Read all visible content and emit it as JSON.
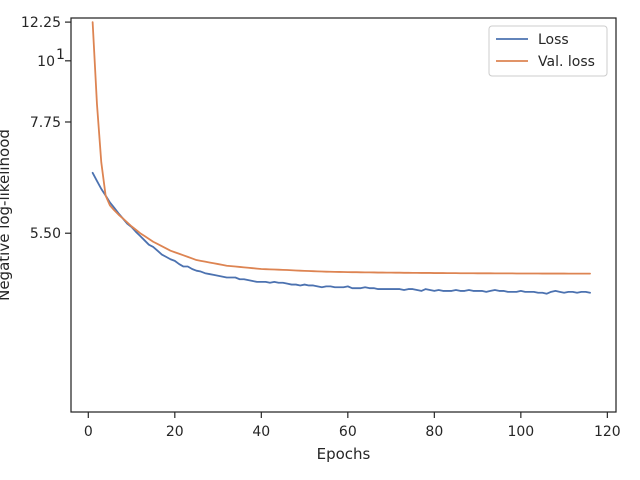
{
  "chart_data": {
    "type": "line",
    "xlabel": "Epochs",
    "ylabel": "Negative log-likelihood",
    "xlim": [
      -4,
      122
    ],
    "ylim": [
      3.75,
      12.55
    ],
    "yscale": "reciprocal",
    "x_ticks": [
      0,
      20,
      40,
      60,
      80,
      100,
      120
    ],
    "y_ticks": [
      5.5,
      7.75,
      10,
      12.25
    ],
    "y_tick_labels": [
      "5.50",
      "7.75",
      "10",
      "12.25"
    ],
    "y_tick_label_superscripts": [
      "",
      "",
      "1",
      ""
    ],
    "grid": false,
    "legend_position": "top-right",
    "legend": [
      "Loss",
      "Val. loss"
    ],
    "series": [
      {
        "name": "Loss",
        "color": "#4c72b0",
        "x": [
          1,
          2,
          3,
          4,
          5,
          6,
          7,
          8,
          9,
          10,
          11,
          12,
          13,
          14,
          15,
          16,
          17,
          18,
          19,
          20,
          21,
          22,
          23,
          24,
          25,
          26,
          27,
          28,
          29,
          30,
          31,
          32,
          33,
          34,
          35,
          36,
          37,
          38,
          39,
          40,
          41,
          42,
          43,
          44,
          45,
          46,
          47,
          48,
          49,
          50,
          51,
          52,
          53,
          54,
          55,
          56,
          57,
          58,
          59,
          60,
          61,
          62,
          63,
          64,
          65,
          66,
          67,
          68,
          69,
          70,
          71,
          72,
          73,
          74,
          75,
          76,
          77,
          78,
          79,
          80,
          81,
          82,
          83,
          84,
          85,
          86,
          87,
          88,
          89,
          90,
          91,
          92,
          93,
          94,
          95,
          96,
          97,
          98,
          99,
          100,
          101,
          102,
          103,
          104,
          105,
          106,
          107,
          108,
          109,
          110,
          111,
          112,
          113,
          114,
          115,
          116
        ],
        "y": [
          6.53,
          6.37,
          6.22,
          6.1,
          5.98,
          5.89,
          5.8,
          5.72,
          5.64,
          5.59,
          5.52,
          5.46,
          5.4,
          5.34,
          5.31,
          5.26,
          5.21,
          5.18,
          5.15,
          5.13,
          5.09,
          5.06,
          5.06,
          5.03,
          5.01,
          5.0,
          4.98,
          4.97,
          4.96,
          4.95,
          4.94,
          4.93,
          4.93,
          4.93,
          4.91,
          4.91,
          4.9,
          4.89,
          4.88,
          4.88,
          4.88,
          4.87,
          4.88,
          4.87,
          4.87,
          4.86,
          4.85,
          4.85,
          4.84,
          4.85,
          4.84,
          4.84,
          4.83,
          4.82,
          4.83,
          4.83,
          4.82,
          4.82,
          4.82,
          4.83,
          4.81,
          4.81,
          4.81,
          4.82,
          4.81,
          4.81,
          4.8,
          4.8,
          4.8,
          4.8,
          4.8,
          4.8,
          4.79,
          4.8,
          4.8,
          4.79,
          4.78,
          4.8,
          4.79,
          4.78,
          4.79,
          4.78,
          4.78,
          4.78,
          4.79,
          4.78,
          4.78,
          4.79,
          4.78,
          4.78,
          4.78,
          4.77,
          4.78,
          4.79,
          4.78,
          4.78,
          4.77,
          4.77,
          4.77,
          4.78,
          4.77,
          4.77,
          4.77,
          4.76,
          4.76,
          4.75,
          4.77,
          4.78,
          4.77,
          4.76,
          4.77,
          4.77,
          4.76,
          4.77,
          4.77,
          4.76
        ]
      },
      {
        "name": "Val. loss",
        "color": "#dd8452",
        "x": [
          1,
          2,
          3,
          4,
          5,
          6,
          7,
          8,
          9,
          10,
          11,
          12,
          13,
          14,
          15,
          16,
          17,
          18,
          19,
          20,
          21,
          22,
          23,
          24,
          25,
          26,
          27,
          28,
          29,
          30,
          31,
          32,
          33,
          34,
          35,
          36,
          37,
          38,
          39,
          40,
          41,
          42,
          43,
          44,
          45,
          46,
          47,
          48,
          49,
          50,
          51,
          52,
          53,
          54,
          55,
          56,
          57,
          58,
          59,
          60,
          61,
          62,
          63,
          64,
          65,
          66,
          67,
          68,
          69,
          70,
          71,
          72,
          73,
          74,
          75,
          76,
          77,
          78,
          79,
          80,
          81,
          82,
          83,
          84,
          85,
          86,
          87,
          88,
          89,
          90,
          91,
          92,
          93,
          94,
          95,
          96,
          97,
          98,
          99,
          100,
          101,
          102,
          103,
          104,
          105,
          106,
          107,
          108,
          109,
          110,
          111,
          112,
          113,
          114,
          115,
          116
        ],
        "y": [
          12.25,
          8.3,
          6.75,
          6.1,
          5.93,
          5.85,
          5.78,
          5.72,
          5.66,
          5.6,
          5.55,
          5.5,
          5.46,
          5.42,
          5.38,
          5.35,
          5.32,
          5.29,
          5.26,
          5.24,
          5.22,
          5.2,
          5.18,
          5.16,
          5.14,
          5.13,
          5.12,
          5.11,
          5.1,
          5.09,
          5.08,
          5.07,
          5.065,
          5.06,
          5.055,
          5.05,
          5.045,
          5.04,
          5.035,
          5.03,
          5.028,
          5.026,
          5.024,
          5.022,
          5.02,
          5.018,
          5.015,
          5.012,
          5.01,
          5.008,
          5.006,
          5.004,
          5.002,
          5.0,
          4.998,
          4.997,
          4.996,
          4.995,
          4.994,
          4.993,
          4.992,
          4.992,
          4.991,
          4.99,
          4.99,
          4.989,
          4.988,
          4.988,
          4.987,
          4.987,
          4.986,
          4.986,
          4.985,
          4.985,
          4.984,
          4.984,
          4.983,
          4.983,
          4.983,
          4.982,
          4.982,
          4.982,
          4.981,
          4.981,
          4.981,
          4.98,
          4.98,
          4.98,
          4.98,
          4.979,
          4.979,
          4.979,
          4.979,
          4.978,
          4.978,
          4.978,
          4.978,
          4.978,
          4.977,
          4.977,
          4.977,
          4.977,
          4.977,
          4.977,
          4.976,
          4.976,
          4.976,
          4.976,
          4.976,
          4.976,
          4.975,
          4.975,
          4.975,
          4.975,
          4.975,
          4.975
        ]
      }
    ]
  }
}
